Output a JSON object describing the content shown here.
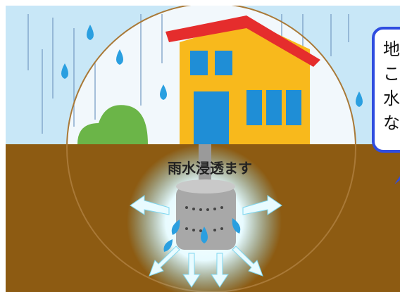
{
  "illustration": {
    "label": "雨水浸透ます",
    "bubble_lines": [
      "地",
      "こ",
      "水",
      "な"
    ]
  }
}
